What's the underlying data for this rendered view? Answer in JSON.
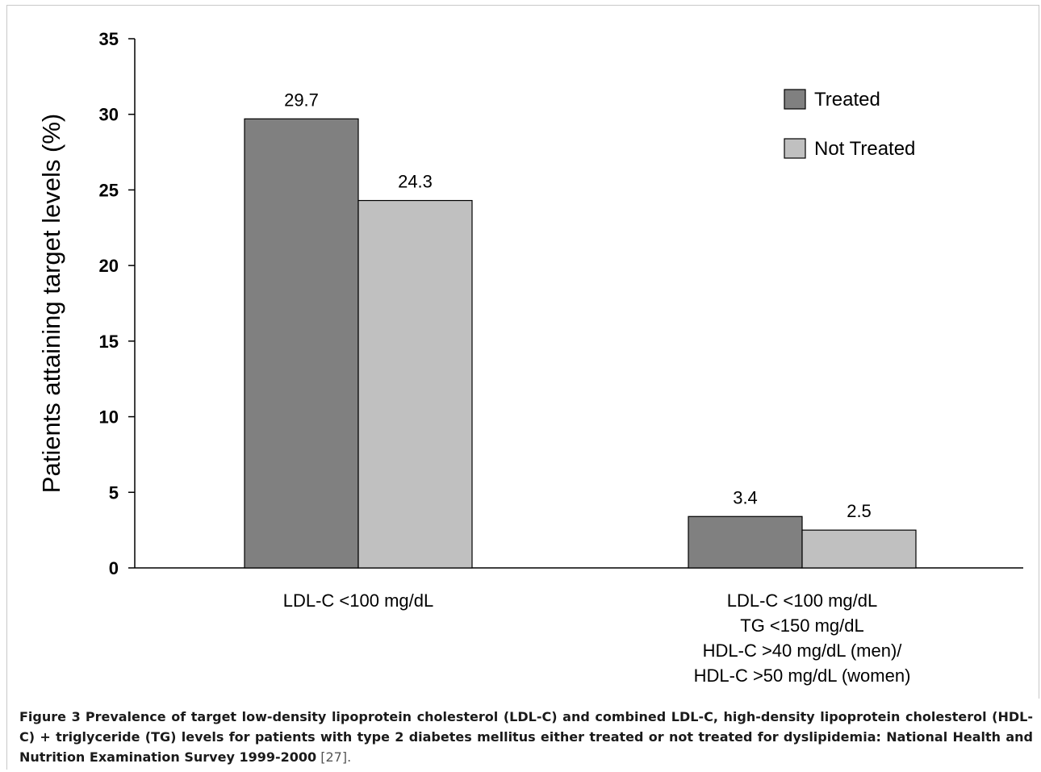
{
  "chart_data": {
    "type": "bar",
    "ylabel": "Patients attaining target levels (%)",
    "ylim": [
      0,
      35
    ],
    "yticks": [
      0,
      5,
      10,
      15,
      20,
      25,
      30,
      35
    ],
    "categories": [
      [
        "LDL-C <100 mg/dL"
      ],
      [
        "LDL-C <100 mg/dL",
        "TG <150 mg/dL",
        "HDL-C >40 mg/dL (men)/",
        "HDL-C >50 mg/dL (women)"
      ]
    ],
    "series": [
      {
        "name": "Treated",
        "values": [
          29.7,
          3.4
        ],
        "labels": [
          "29.7",
          "3.4"
        ],
        "color": "#808080"
      },
      {
        "name": "Not Treated",
        "values": [
          24.3,
          2.5
        ],
        "labels": [
          "24.3",
          "2.5"
        ],
        "color": "#c0c0c0"
      }
    ],
    "legend_position": "top-right",
    "grid": false
  },
  "caption": {
    "label": "Figure 3",
    "text": "Prevalence of target low-density lipoprotein cholesterol (LDL-C) and combined LDL-C, high-density lipoprotein cholesterol (HDL-C) + triglyceride (TG) levels for patients with type 2 diabetes mellitus either treated or not treated for dyslipidemia: National Health and Nutrition Examination Survey 1999-2000",
    "citation": "[27]."
  }
}
